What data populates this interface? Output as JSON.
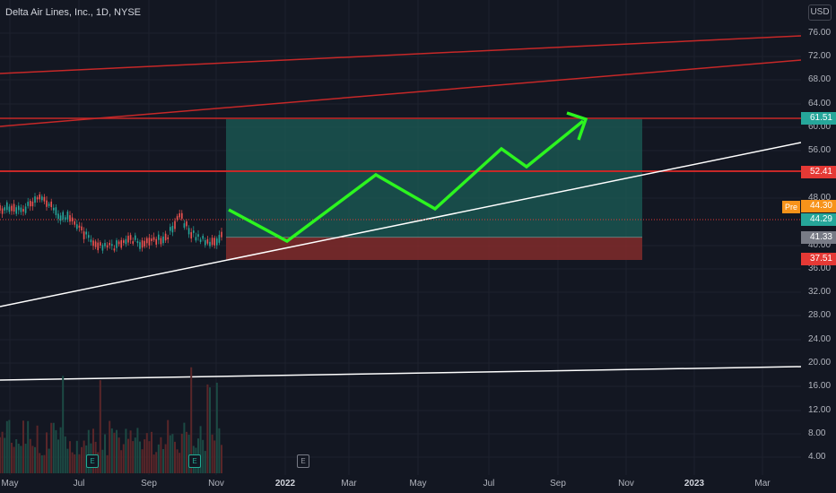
{
  "header": {
    "title": "Delta Air Lines, Inc., 1D, NYSE",
    "currency": "USD"
  },
  "price_axis": {
    "ticks": [
      "76.00",
      "72.00",
      "68.00",
      "64.00",
      "60.00",
      "56.00",
      "48.00",
      "40.00",
      "36.00",
      "32.00",
      "28.00",
      "24.00",
      "20.00",
      "16.00",
      "12.00",
      "8.00",
      "4.00"
    ]
  },
  "price_tags": [
    {
      "label": "61.51",
      "color": "#26a69a",
      "name": "target-price-tag"
    },
    {
      "label": "52.41",
      "color": "#e53935",
      "name": "level-price-tag"
    },
    {
      "label": "44.30",
      "color": "#f7931a",
      "name": "premarket-price-tag"
    },
    {
      "label": "44.29",
      "color": "#26a69a",
      "name": "last-price-tag"
    },
    {
      "label": "41.33",
      "color": "#787b86",
      "name": "entry-price-tag"
    },
    {
      "label": "37.51",
      "color": "#e53935",
      "name": "stop-price-tag"
    }
  ],
  "pre_label": "Pre",
  "time_axis": {
    "labels": [
      "May",
      "Jul",
      "Sep",
      "Nov",
      "2022",
      "Mar",
      "May",
      "Jul",
      "Sep",
      "Nov",
      "2023",
      "Mar"
    ]
  },
  "earnings_marker": "E",
  "colors": {
    "background": "#131722",
    "support_line": "#ffffff",
    "resistance_line": "#c62828",
    "projection_arrow": "#2cf51f",
    "target_zone": "#1b5e57",
    "stop_zone": "#7b2a2a"
  }
}
